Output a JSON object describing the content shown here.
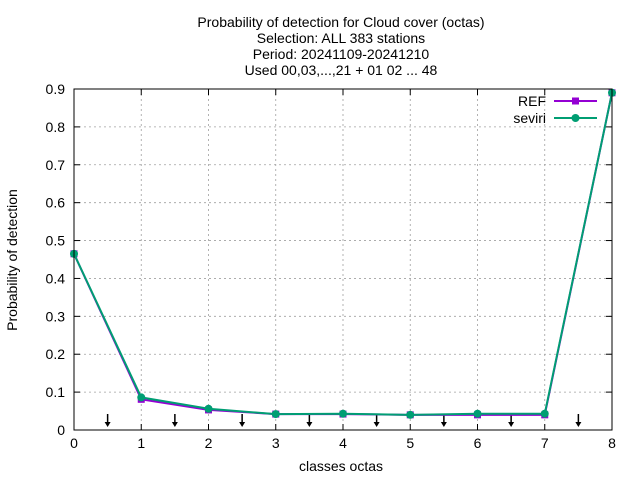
{
  "chart_data": {
    "type": "line",
    "title_lines": [
      "Probability of detection  for Cloud cover (octas)",
      "Selection: ALL    383 stations",
      "Period: 20241109-20241210",
      "Used 00,03,...,21 + 01 02 ... 48"
    ],
    "xlabel": "classes octas",
    "ylabel": "Probability of detection",
    "xlim": [
      0,
      8
    ],
    "ylim": [
      0,
      0.9
    ],
    "x_ticks": [
      0,
      1,
      2,
      3,
      4,
      5,
      6,
      7,
      8
    ],
    "y_ticks": [
      0,
      0.1,
      0.2,
      0.3,
      0.4,
      0.5,
      0.6,
      0.7,
      0.8,
      0.9
    ],
    "grid": true,
    "legend_position": "top-right",
    "x": [
      0,
      1,
      2,
      3,
      4,
      5,
      6,
      7,
      8
    ],
    "series": [
      {
        "name": "REF",
        "color": "#9400d3",
        "marker": "square",
        "values": [
          0.465,
          0.081,
          0.053,
          0.042,
          0.042,
          0.04,
          0.04,
          0.04,
          0.89
        ]
      },
      {
        "name": "seviri",
        "color": "#009e73",
        "marker": "circle",
        "values": [
          0.465,
          0.086,
          0.056,
          0.042,
          0.043,
          0.04,
          0.043,
          0.043,
          0.89
        ]
      }
    ],
    "arrow_markers_x": [
      0.5,
      1.5,
      2.5,
      3.5,
      4.5,
      5.5,
      6.5,
      7.5
    ]
  }
}
